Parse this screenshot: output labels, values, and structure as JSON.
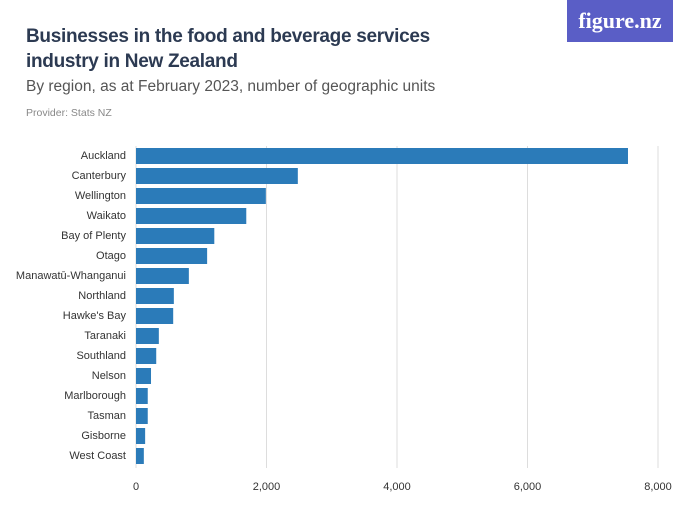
{
  "logo": "figure.nz",
  "chart_data": {
    "type": "barh",
    "title": "Businesses in the food and beverage services industry in New Zealand",
    "subtitle": "By region, as at February 2023, number of geographic units",
    "provider": "Provider: Stats NZ",
    "categories": [
      "Auckland",
      "Canterbury",
      "Wellington",
      "Waikato",
      "Bay of Plenty",
      "Otago",
      "Manawatū-Whanganui",
      "Northland",
      "Hawke's Bay",
      "Taranaki",
      "Southland",
      "Nelson",
      "Marlborough",
      "Tasman",
      "Gisborne",
      "West Coast"
    ],
    "values": [
      7540,
      2480,
      1990,
      1690,
      1200,
      1090,
      810,
      580,
      570,
      350,
      310,
      230,
      180,
      180,
      140,
      120
    ],
    "color": "#2b7bb9",
    "xlim": [
      0,
      8000
    ],
    "xticks": [
      0,
      {
        "value": 2000,
        "label": "2,000"
      },
      {
        "value": 4000,
        "label": "4,000"
      },
      {
        "value": 6000,
        "label": "6,000"
      },
      {
        "value": 8000,
        "label": "8,000"
      }
    ],
    "grid": true
  }
}
